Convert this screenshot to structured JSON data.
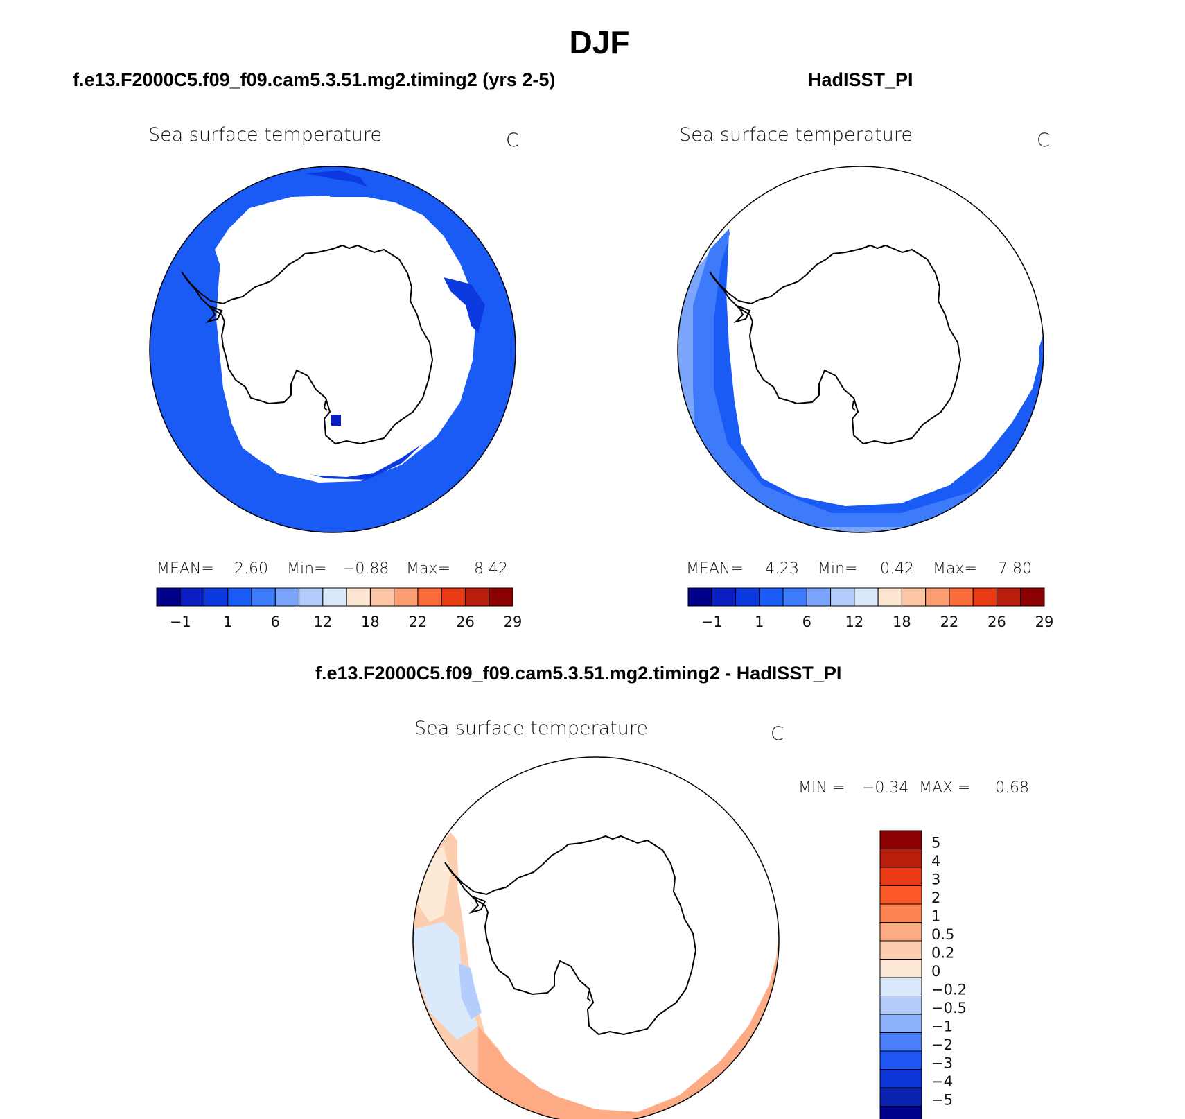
{
  "page": {
    "title": "DJF",
    "panel_titles": [
      "f.e13.F2000C5.f09_f09.cam5.3.51.mg2.timing2 (yrs 2-5)",
      "HadISST_PI",
      "f.e13.F2000C5.f09_f09.cam5.3.51.mg2.timing2 - HadISST_PI"
    ]
  },
  "chart_data": [
    {
      "type": "heatmap",
      "projection": "south polar stereographic",
      "title": "Sea surface temperature",
      "units": "C",
      "stats": {
        "mean_label": "MEAN=",
        "mean": "2.60",
        "min_label": "Min=",
        "min": "−0.88",
        "max_label": "Max=",
        "max": "8.42"
      },
      "colorbar": {
        "orientation": "horizontal",
        "colors": [
          "#00008b",
          "#0a1fc2",
          "#0d3ae0",
          "#1a5af5",
          "#3e7bfa",
          "#7aa5fb",
          "#b4cdfc",
          "#dbe9fd",
          "#fde7d2",
          "#fcc6a6",
          "#fc9e74",
          "#fb6d3d",
          "#e83a14",
          "#b81e0b",
          "#8b0000"
        ],
        "labels": [
          "−1",
          "1",
          "6",
          "12",
          "18",
          "22",
          "26",
          "29"
        ]
      }
    },
    {
      "type": "heatmap",
      "projection": "south polar stereographic",
      "title": "Sea surface temperature",
      "units": "C",
      "stats": {
        "mean_label": "MEAN=",
        "mean": "4.23",
        "min_label": "Min=",
        "min": "0.42",
        "max_label": "Max=",
        "max": "7.80"
      },
      "colorbar": {
        "orientation": "horizontal",
        "colors": [
          "#00008b",
          "#0a1fc2",
          "#0d3ae0",
          "#1a5af5",
          "#3e7bfa",
          "#7aa5fb",
          "#b4cdfc",
          "#dbe9fd",
          "#fde7d2",
          "#fcc6a6",
          "#fc9e74",
          "#fb6d3d",
          "#e83a14",
          "#b81e0b",
          "#8b0000"
        ],
        "labels": [
          "−1",
          "1",
          "6",
          "12",
          "18",
          "22",
          "26",
          "29"
        ]
      }
    },
    {
      "type": "heatmap",
      "projection": "south polar stereographic",
      "title": "Sea surface temperature",
      "units": "C",
      "stats": {
        "min_label": "MIN =",
        "min": "−0.34",
        "max_label": "MAX =",
        "max": "0.68"
      },
      "colorbar": {
        "orientation": "vertical",
        "colors": [
          "#8b0000",
          "#b81e0b",
          "#e83a14",
          "#fb5a28",
          "#fc8450",
          "#fcab84",
          "#fdcdb0",
          "#fde9d6",
          "#dbe9fd",
          "#b4cdfc",
          "#8eb1fc",
          "#4a7ff9",
          "#1f55f0",
          "#0c35d6",
          "#0a23b0",
          "#00008b"
        ],
        "labels": [
          "5",
          "4",
          "3",
          "2",
          "1",
          "0.5",
          "0.2",
          "0",
          "−0.2",
          "−0.5",
          "−1",
          "−2",
          "−3",
          "−4",
          "−5"
        ]
      }
    }
  ]
}
